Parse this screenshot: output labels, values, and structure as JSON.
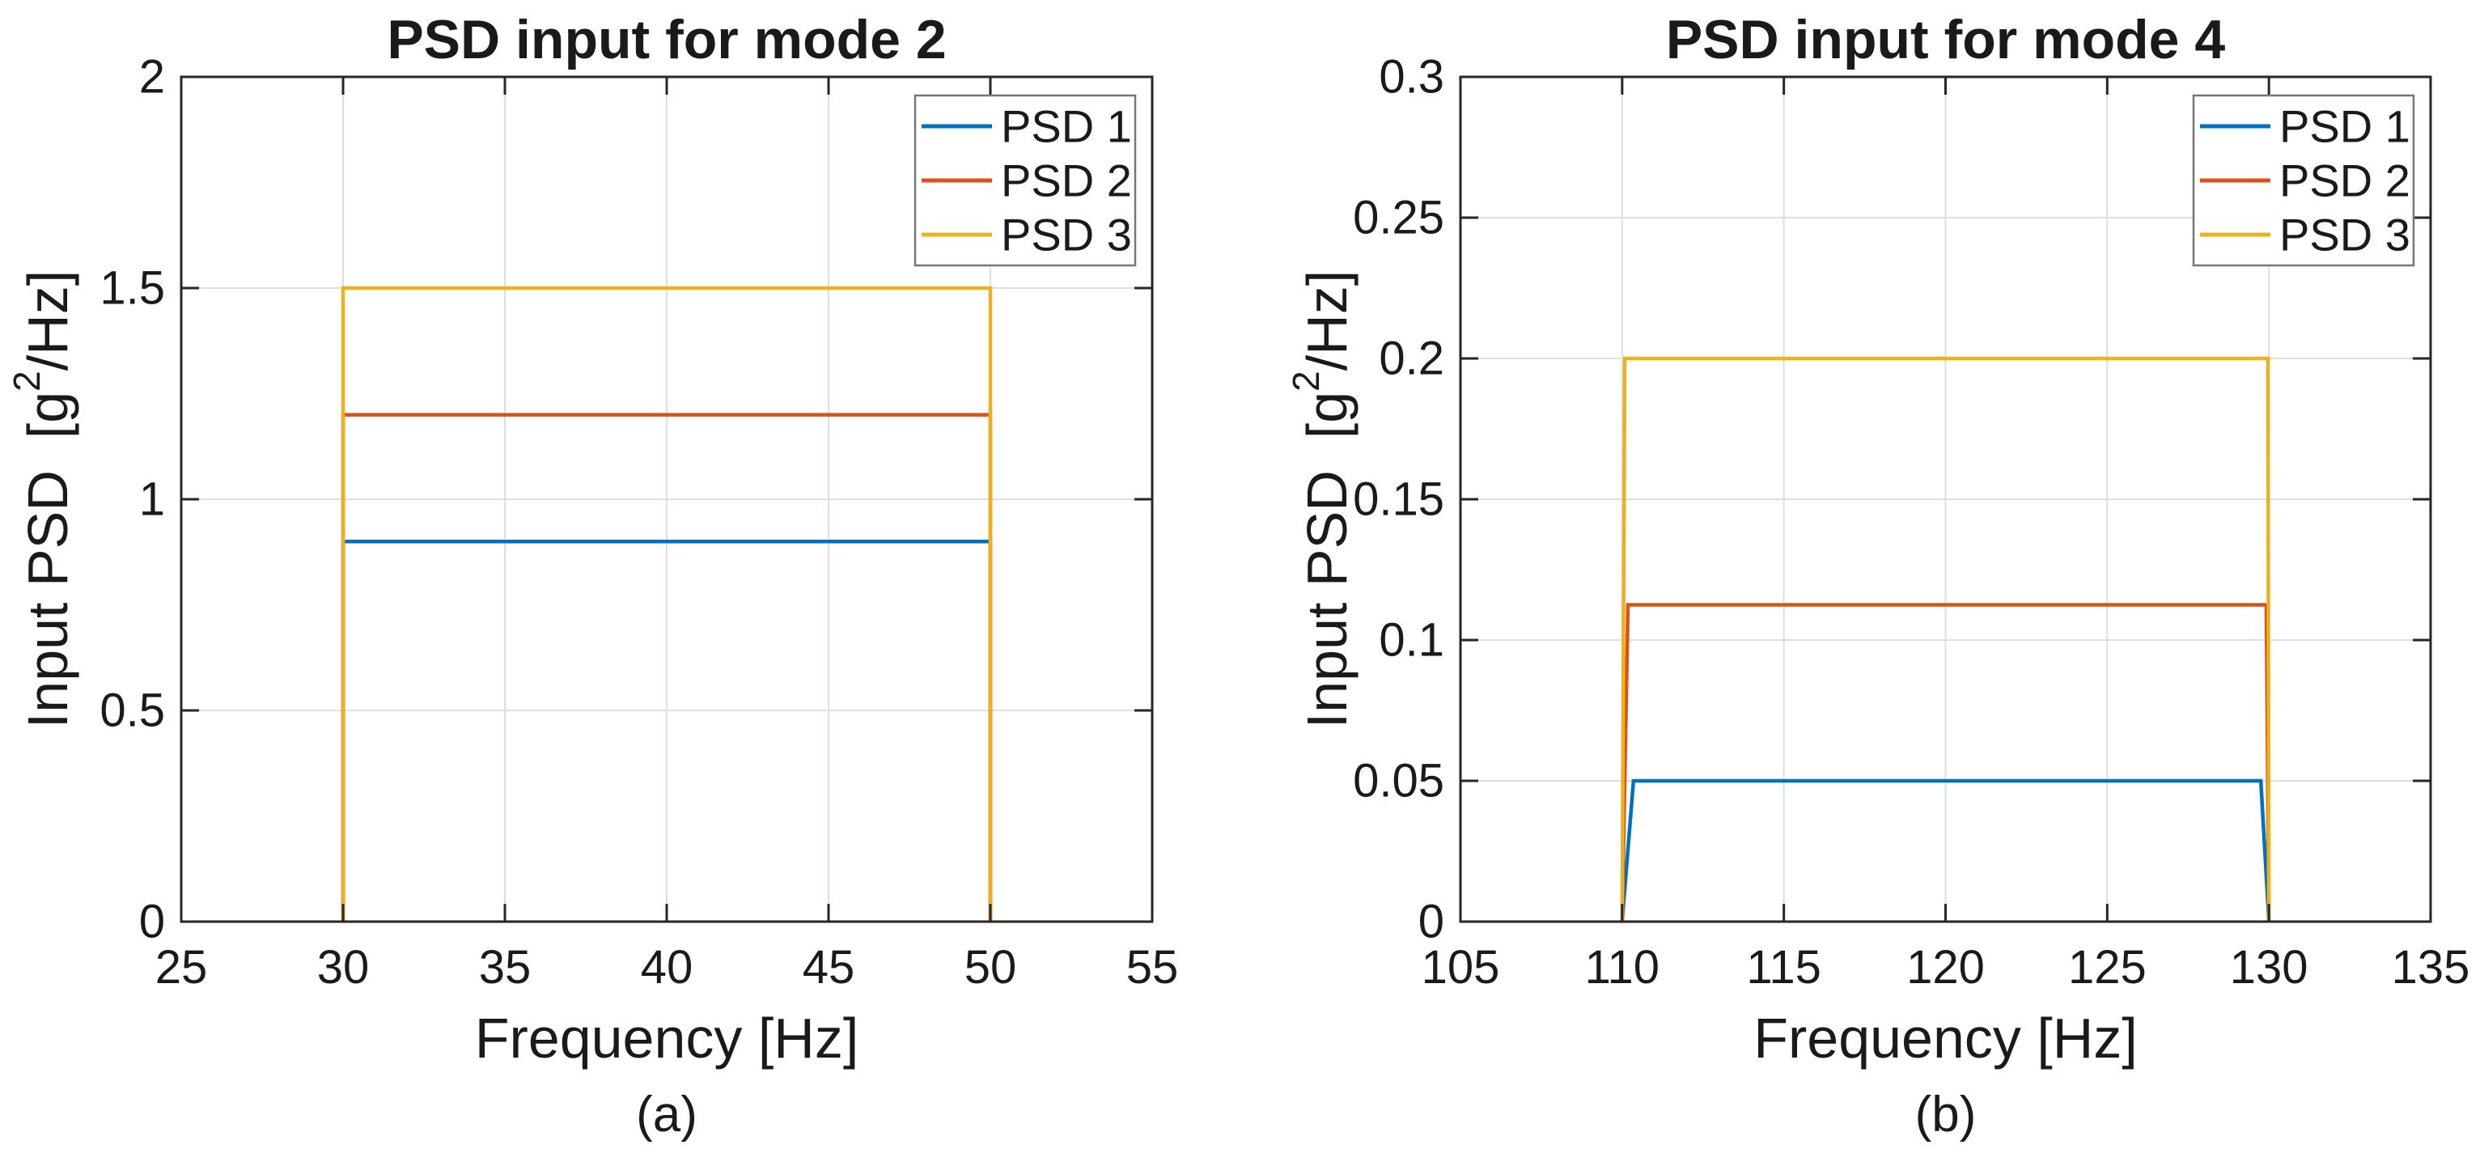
{
  "figure": {
    "background": "#ffffff",
    "text_color": "#1a1a1a",
    "axis_color": "#262626",
    "grid_color": "#dedede",
    "legend_border_color": "#767676"
  },
  "chart_data": [
    {
      "type": "line",
      "id": "a",
      "title": "PSD input for mode 2",
      "xlabel": "Frequency [Hz]",
      "ylabel": "Input PSD [g^2/Hz]",
      "ylabel_parts": {
        "prefix": "Input PSD  [g",
        "sup": "2",
        "suffix": "/Hz]"
      },
      "caption": "(a)",
      "xlim": [
        25,
        55
      ],
      "ylim": [
        0,
        2
      ],
      "xticks": [
        25,
        30,
        35,
        40,
        45,
        50,
        55
      ],
      "xtick_labels": [
        "25",
        "30",
        "35",
        "40",
        "45",
        "50",
        "55"
      ],
      "yticks": [
        0,
        0.5,
        1,
        1.5,
        2
      ],
      "ytick_labels": [
        "0",
        "0.5",
        "1",
        "1.5",
        "2"
      ],
      "grid": true,
      "legend": {
        "position": "top-right",
        "entries": [
          "PSD 1",
          "PSD 2",
          "PSD 3"
        ]
      },
      "series": [
        {
          "name": "PSD 1",
          "color": "#0072BD",
          "band_hz": [
            30,
            50
          ],
          "level_g2hz": 0.9,
          "points": [
            [
              30,
              0
            ],
            [
              30,
              0.9
            ],
            [
              50,
              0.9
            ],
            [
              50,
              0
            ]
          ]
        },
        {
          "name": "PSD 2",
          "color": "#D95319",
          "band_hz": [
            30,
            50
          ],
          "level_g2hz": 1.2,
          "points": [
            [
              30,
              0
            ],
            [
              30,
              1.2
            ],
            [
              50,
              1.2
            ],
            [
              50,
              0
            ]
          ]
        },
        {
          "name": "PSD 3",
          "color": "#EDB120",
          "band_hz": [
            30,
            50
          ],
          "level_g2hz": 1.5,
          "points": [
            [
              30,
              0
            ],
            [
              30,
              1.5
            ],
            [
              50,
              1.5
            ],
            [
              50,
              0
            ]
          ]
        }
      ]
    },
    {
      "type": "line",
      "id": "b",
      "title": "PSD input for mode 4",
      "xlabel": "Frequency [Hz]",
      "ylabel": "Input PSD [g^2/Hz]",
      "ylabel_parts": {
        "prefix": "Input PSD  [g",
        "sup": "2",
        "suffix": "/Hz]"
      },
      "caption": "(b)",
      "xlim": [
        105,
        135
      ],
      "ylim": [
        0,
        0.3
      ],
      "xticks": [
        105,
        110,
        115,
        120,
        125,
        130,
        135
      ],
      "xtick_labels": [
        "105",
        "110",
        "115",
        "120",
        "125",
        "130",
        "135"
      ],
      "yticks": [
        0,
        0.05,
        0.1,
        0.15,
        0.2,
        0.25,
        0.3
      ],
      "ytick_labels": [
        "0",
        "0.05",
        "0.1",
        "0.15",
        "0.2",
        "0.25",
        "0.3"
      ],
      "grid": true,
      "legend": {
        "position": "top-right",
        "entries": [
          "PSD 1",
          "PSD 2",
          "PSD 3"
        ]
      },
      "series": [
        {
          "name": "PSD 1",
          "color": "#0072BD",
          "band_hz": [
            110,
            130
          ],
          "level_g2hz": 0.05,
          "points": [
            [
              110,
              0
            ],
            [
              110.35,
              0.05
            ],
            [
              129.75,
              0.05
            ],
            [
              130,
              0
            ]
          ]
        },
        {
          "name": "PSD 2",
          "color": "#D95319",
          "band_hz": [
            110,
            130
          ],
          "level_g2hz": 0.1125,
          "points": [
            [
              110,
              0
            ],
            [
              110.18,
              0.1125
            ],
            [
              129.92,
              0.1125
            ],
            [
              130,
              0
            ]
          ]
        },
        {
          "name": "PSD 3",
          "color": "#EDB120",
          "band_hz": [
            110,
            130
          ],
          "level_g2hz": 0.2,
          "points": [
            [
              110,
              0
            ],
            [
              110.08,
              0.2
            ],
            [
              129.97,
              0.2
            ],
            [
              130,
              0
            ]
          ]
        }
      ]
    }
  ]
}
